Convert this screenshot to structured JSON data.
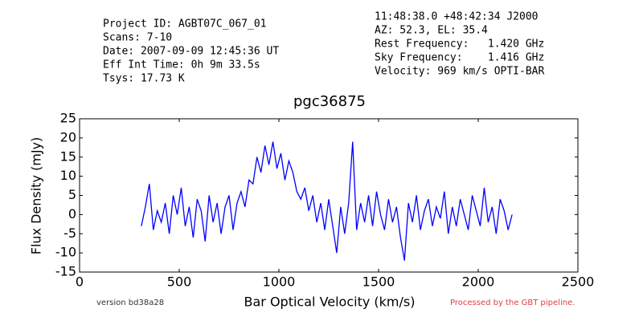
{
  "chart_data": {
    "type": "line",
    "title": "pgc36875",
    "xlabel": "Bar Optical Velocity (km/s)",
    "ylabel": "Flux Density (mJy)",
    "info_left": [
      "Project ID: AGBT07C_067_01",
      "Scans: 7-10",
      "Date: 2007-09-09 12:45:36 UT",
      "Eff Int Time: 0h 9m 33.5s",
      "Tsys: 17.73 K"
    ],
    "info_right": [
      "11:48:38.0 +48:42:34 J2000",
      "AZ: 52.3, EL: 35.4",
      "Rest Frequency:   1.420 GHz",
      "Sky Frequency:    1.416 GHz",
      "Velocity: 969 km/s OPTI-BAR"
    ],
    "footer_left": "version bd38a28",
    "footer_right": "Processed by the GBT pipeline.",
    "color": "#0000ff",
    "x": [
      310,
      330,
      350,
      370,
      390,
      410,
      430,
      450,
      470,
      490,
      510,
      530,
      550,
      570,
      590,
      610,
      630,
      650,
      670,
      690,
      710,
      730,
      750,
      770,
      790,
      810,
      830,
      850,
      870,
      890,
      910,
      930,
      950,
      970,
      990,
      1010,
      1030,
      1050,
      1070,
      1090,
      1110,
      1130,
      1150,
      1170,
      1190,
      1210,
      1230,
      1250,
      1270,
      1290,
      1310,
      1330,
      1350,
      1370,
      1390,
      1410,
      1430,
      1450,
      1470,
      1490,
      1510,
      1530,
      1550,
      1570,
      1590,
      1610,
      1630,
      1650,
      1670,
      1690,
      1710,
      1730,
      1750,
      1770,
      1790,
      1810,
      1830,
      1850,
      1870,
      1890,
      1910,
      1930,
      1950,
      1970,
      1990,
      2010,
      2030,
      2050,
      2070,
      2090,
      2110,
      2130,
      2150,
      2170
    ],
    "values": [
      -3,
      2,
      8,
      -4,
      1,
      -2,
      3,
      -5,
      5,
      0,
      7,
      -3,
      2,
      -6,
      4,
      1,
      -7,
      5,
      -2,
      3,
      -5,
      2,
      5,
      -4,
      3,
      6,
      2,
      9,
      8,
      15,
      11,
      18,
      13,
      19,
      12,
      16,
      9,
      14,
      11,
      6,
      4,
      7,
      1,
      5,
      -2,
      3,
      -4,
      4,
      -3,
      -10,
      2,
      -5,
      3,
      19,
      -4,
      3,
      -2,
      5,
      -3,
      6,
      0,
      -4,
      4,
      -2,
      2,
      -6,
      -12,
      3,
      -2,
      5,
      -4,
      1,
      4,
      -3,
      2,
      -1,
      6,
      -5,
      2,
      -3,
      4,
      0,
      -4,
      5,
      1,
      -3,
      7,
      -2,
      2,
      -5,
      4,
      1,
      -4,
      0
    ],
    "xlim": [
      0,
      2500
    ],
    "xticks": [
      0,
      500,
      1000,
      1500,
      2000,
      2500
    ],
    "ylim": [
      -15,
      25
    ],
    "yticks": [
      -15,
      -10,
      -5,
      0,
      5,
      10,
      15,
      20,
      25
    ]
  }
}
